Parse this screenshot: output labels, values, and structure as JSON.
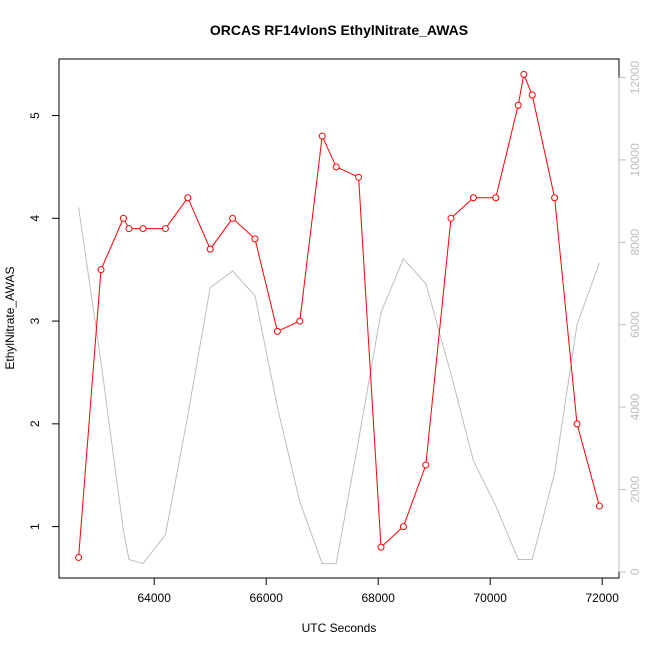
{
  "chart_data": {
    "type": "line",
    "title": "ORCAS RF14vlonS EthylNitrate_AWAS",
    "xlabel": "UTC Seconds",
    "ylabel": "EthylNitrate_AWAS",
    "xlim": [
      62300,
      72300
    ],
    "ylim": [
      0.5,
      5.55
    ],
    "y2lim": [
      -150,
      12450
    ],
    "x_ticks": [
      64000,
      66000,
      68000,
      70000,
      72000
    ],
    "x_tick_labels": [
      "64000",
      "66000",
      "68000",
      "70000",
      "72000"
    ],
    "y_ticks": [
      1,
      2,
      3,
      4,
      5
    ],
    "y_tick_labels": [
      "1",
      "2",
      "3",
      "4",
      "5"
    ],
    "y2_ticks": [
      0,
      2000,
      4000,
      6000,
      8000,
      10000,
      12000
    ],
    "y2_tick_labels": [
      "0",
      "2000",
      "4000",
      "6000",
      "8000",
      "10000",
      "12000"
    ],
    "grid": false,
    "colors": {
      "primary": "#ff0000",
      "secondary": "#bebebe",
      "axis_left": "#000000",
      "axis_right": "#bebebe"
    },
    "series": [
      {
        "axis": "left",
        "marker": "open-circle",
        "x": [
          62650,
          63050,
          63450,
          63550,
          63800,
          64200,
          64600,
          65000,
          65400,
          65800,
          66200,
          66600,
          67000,
          67250,
          67650,
          68050,
          68450,
          68850,
          69300,
          69700,
          70100,
          70500,
          70600,
          70750,
          71150,
          71550,
          71950
        ],
        "y": [
          0.7,
          3.5,
          4.0,
          3.9,
          3.9,
          3.9,
          4.2,
          3.7,
          4.0,
          3.8,
          2.9,
          3.0,
          4.8,
          4.5,
          4.4,
          0.8,
          1.0,
          1.6,
          4.0,
          4.2,
          4.2,
          5.1,
          5.4,
          5.2,
          4.2,
          2.0,
          1.2
        ]
      },
      {
        "axis": "right",
        "marker": "none",
        "x": [
          62650,
          63050,
          63450,
          63550,
          63800,
          64200,
          64600,
          65000,
          65400,
          65800,
          66200,
          66600,
          67000,
          67250,
          67650,
          68050,
          68450,
          68850,
          69300,
          69700,
          70100,
          70500,
          70750,
          71150,
          71550,
          71950
        ],
        "y": [
          8850,
          5100,
          1000,
          300,
          200,
          900,
          3800,
          6900,
          7300,
          6700,
          4000,
          1700,
          200,
          200,
          3200,
          6300,
          7600,
          7000,
          4800,
          2700,
          1600,
          300,
          300,
          2400,
          6000,
          7500
        ]
      }
    ]
  }
}
